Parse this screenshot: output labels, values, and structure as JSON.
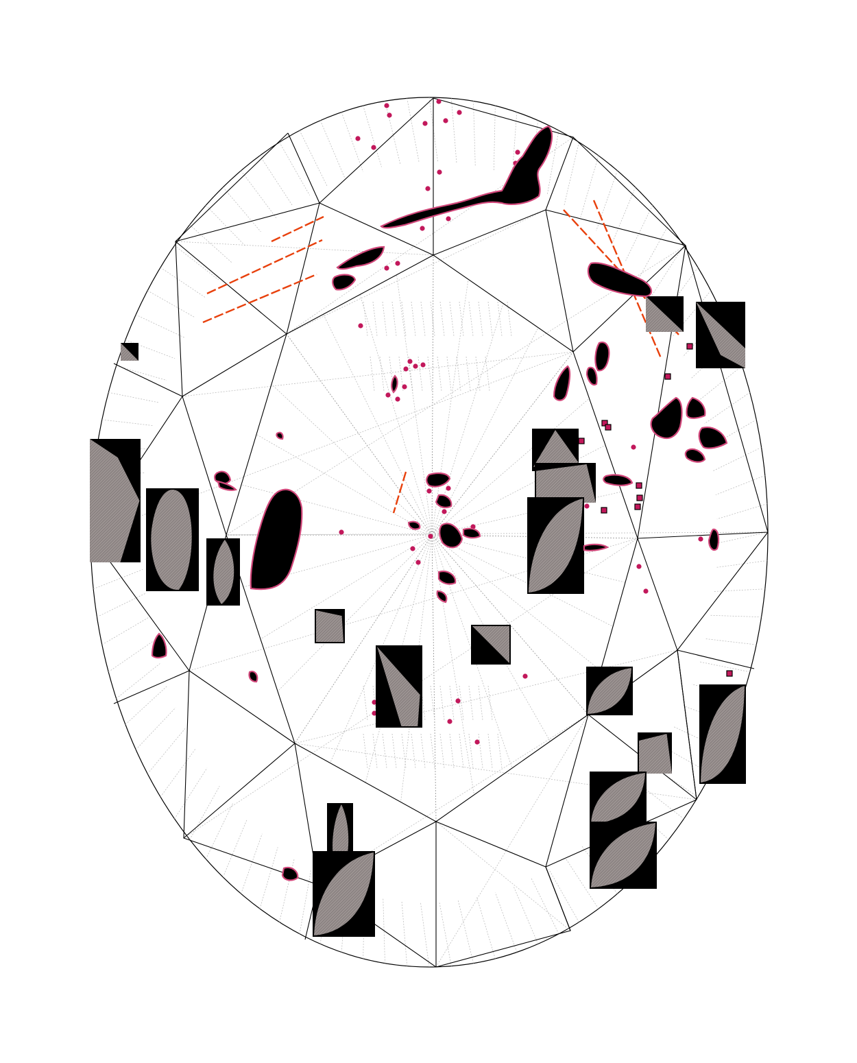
{
  "diagram": {
    "type": "diamond-clarity-plot",
    "shape": "oval",
    "colors": {
      "outline": "#000000",
      "guide": "#9a9a9a",
      "inclusion_fill": "#000000",
      "inclusion_stroke": "#d1477a",
      "pinpoint": "#c2185b",
      "feather": "#e8400c",
      "crystal_box": "#000000",
      "crystal_hatch": "#8c8483",
      "crystal_edge": "#b9b0ae"
    },
    "legend": [],
    "text": []
  }
}
